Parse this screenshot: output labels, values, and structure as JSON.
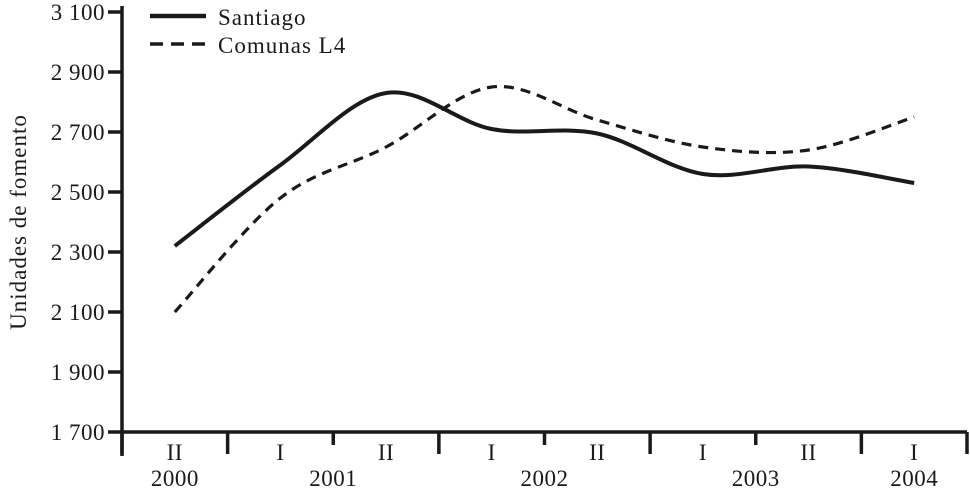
{
  "chart_data": {
    "type": "line",
    "title": "",
    "xlabel": "",
    "ylabel": "Unidades de fomento",
    "ylim": [
      1700,
      3100
    ],
    "ytick_step": 200,
    "ytick_labels": [
      "1 700",
      "1 900",
      "2 100",
      "2 300",
      "2 500",
      "2 700",
      "2 900",
      "3 100"
    ],
    "categories": [
      "2000-II",
      "2001-I",
      "2001-II",
      "2002-I",
      "2002-II",
      "2003-I",
      "2003-II",
      "2004-I"
    ],
    "semester_labels": [
      "II",
      "I",
      "II",
      "I",
      "II",
      "I",
      "II",
      "I"
    ],
    "years": [
      {
        "label": "2000",
        "anchor": 0.5
      },
      {
        "label": "2001",
        "anchor": 2
      },
      {
        "label": "2002",
        "anchor": 4
      },
      {
        "label": "2003",
        "anchor": 6
      },
      {
        "label": "2004",
        "anchor": 7.5
      }
    ],
    "axis_ticks": {
      "long_boundaries": [
        0,
        1,
        3,
        5,
        7,
        8
      ],
      "short_boundaries": [
        2,
        4,
        6
      ]
    },
    "series": [
      {
        "name": "Santiago",
        "style": "solid",
        "values": [
          2320,
          2590,
          2830,
          2710,
          2695,
          2560,
          2585,
          2530
        ]
      },
      {
        "name": "Comunas L4",
        "style": "dashed",
        "values": [
          2100,
          2480,
          2650,
          2850,
          2740,
          2650,
          2640,
          2750
        ]
      }
    ],
    "legend_position": "top-left",
    "grid": false,
    "line_color": "#1a1a1a",
    "background": "#ffffff"
  }
}
